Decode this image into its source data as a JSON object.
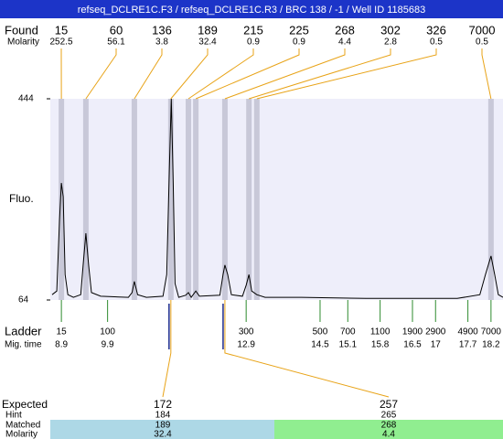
{
  "title": "refseq_DCLRE1C.F3 / refseq_DCLRE1C.R3 / BRC 138 / -1 / Well ID 1185683",
  "chart_data": {
    "type": "line",
    "y_label": "Fluo.",
    "ylim": [
      64,
      444
    ],
    "yticks": [
      64,
      444
    ],
    "xlim": [
      8.66,
      18.46
    ],
    "series": [
      {
        "color": "#000000",
        "x": [
          8.7,
          8.8,
          8.86,
          8.9,
          8.94,
          8.98,
          9.04,
          9.16,
          9.32,
          9.37,
          9.43,
          9.49,
          9.55,
          9.75,
          10.35,
          10.43,
          10.48,
          10.55,
          10.74,
          11.1,
          11.18,
          11.24,
          11.28,
          11.32,
          11.36,
          11.44,
          11.59,
          11.65,
          11.71,
          11.81,
          11.89,
          12.33,
          12.4,
          12.44,
          12.5,
          12.58,
          12.82,
          12.9,
          12.96,
          13.02,
          13.13,
          13.31,
          14.1,
          15.49,
          17.47,
          17.96,
          18.08,
          18.2,
          18.28,
          18.36,
          18.46
        ],
        "values": [
          74,
          81,
          216,
          285,
          259,
          112,
          74,
          69,
          74,
          130,
          190,
          130,
          78,
          71,
          69,
          78,
          99,
          74,
          69,
          71,
          112,
          319,
          444,
          285,
          95,
          69,
          73,
          78,
          69,
          81,
          71,
          73,
          112,
          130,
          112,
          74,
          71,
          92,
          112,
          81,
          74,
          69,
          69,
          67,
          67,
          74,
          112,
          147,
          112,
          74,
          69
        ]
      }
    ],
    "found": {
      "label": "Found",
      "molarity_label": "Molarity",
      "band_color": "#c8c8d8",
      "line_color": "#e8a317",
      "sizes": [
        15,
        60,
        136,
        189,
        215,
        225,
        268,
        302,
        326,
        7000
      ],
      "molarities": [
        252.5,
        56.1,
        3.8,
        32.4,
        0.9,
        0.9,
        4.4,
        2.8,
        0.5,
        0.5
      ],
      "times": [
        8.9,
        9.43,
        10.48,
        11.27,
        11.65,
        11.81,
        12.44,
        12.96,
        13.13,
        18.2
      ]
    },
    "ladder": {
      "label": "Ladder",
      "time_label": "Mig. time",
      "color": "#2e8b2e",
      "sizes": [
        15,
        100,
        300,
        500,
        700,
        1100,
        1900,
        2900,
        4900,
        7000
      ],
      "times": [
        8.9,
        9.9,
        12.9,
        14.5,
        15.1,
        15.8,
        16.5,
        17,
        17.7,
        18.2
      ]
    },
    "expected": {
      "labels": [
        "Expected",
        "Hint",
        "Matched",
        "Molarity"
      ],
      "expected": [
        172,
        257
      ],
      "hint": [
        184,
        265
      ],
      "matched": [
        189,
        268
      ],
      "molarity": [
        32.4,
        4.4
      ],
      "colors": [
        "#add8e6",
        "#90ee90"
      ]
    }
  }
}
